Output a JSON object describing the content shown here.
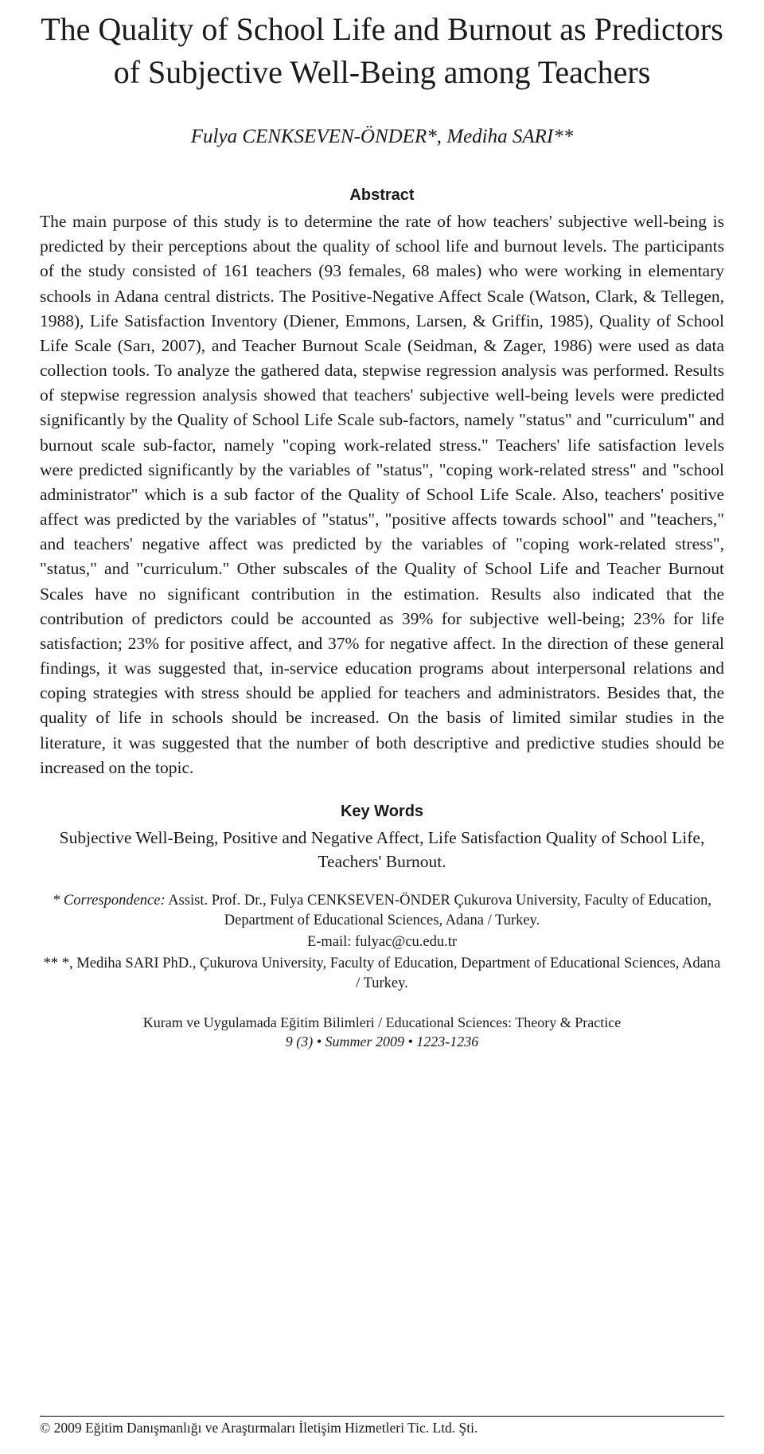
{
  "title": "The Quality of School Life and Burnout as Predictors of Subjective Well-Being among Teachers",
  "authors": "Fulya CENKSEVEN-ÖNDER*, Mediha SARI**",
  "abstract_heading": "Abstract",
  "abstract_body": "The main purpose of this study is to determine the rate of how teachers' subjective well-being is predicted by their perceptions about the quality of school life and burnout levels. The participants of the study consisted of 161 teachers (93 females, 68 males) who were working in elementary schools in Adana central districts. The Positive-Negative Affect Scale (Watson, Clark, & Tellegen, 1988), Life Satisfaction Inventory (Diener, Emmons, Larsen, & Griffin, 1985), Quality of School Life Scale (Sarı, 2007), and Teacher Burnout Scale (Seidman, & Zager, 1986) were used as data collection tools. To analyze the gathered data, stepwise regression analysis was performed.\nResults of stepwise regression analysis showed that teachers' subjective well-being levels were predicted significantly by the Quality of School Life Scale sub-factors, namely \"status\" and \"curriculum\" and burnout scale sub-factor, namely \"coping work-related stress.\" Teachers' life satisfaction levels were predicted significantly by the variables of \"status\", \"coping work-related stress\" and \"school administrator\" which is a sub factor of the Quality of School Life Scale. Also, teachers' positive affect was predicted by the variables of \"status\", \"positive affects towards school\" and \"teachers,\" and teachers' negative affect was predicted by the variables of \"coping work-related stress\", \"status,\" and \"curriculum.\" Other subscales of the Quality of School Life and Teacher Burnout Scales have no significant contribution in the estimation. Results also indicated that the contribution of predictors could be accounted as 39% for subjective well-being; 23% for life satisfaction; 23% for positive affect, and 37% for negative affect. In the direction of these general findings, it was suggested that, in-service education programs about interpersonal relations and coping strategies with stress should be applied for teachers and administrators. Besides that, the quality of life in schools should be increased. On the basis of limited similar studies in the literature, it was suggested that the number of both descriptive and predictive studies should be increased on the topic.",
  "keywords_heading": "Key Words",
  "keywords_body": "Subjective Well-Being, Positive and Negative Affect, Life Satisfaction Quality of School Life, Teachers' Burnout.",
  "correspondence1_label": "* Correspondence:",
  "correspondence1_body": " Assist. Prof. Dr., Fulya CENKSEVEN-ÖNDER Çukurova University, Faculty of Education, Department of Educational Sciences, Adana / Turkey.",
  "correspondence1_email": "E-mail: fulyac@cu.edu.tr",
  "correspondence2": "** *, Mediha SARI PhD., Çukurova University, Faculty of Education, Department of Educational Sciences, Adana / Turkey.",
  "journal_line1": "Kuram ve Uygulamada Eğitim Bilimleri / Educational Sciences: Theory & Practice",
  "journal_line2": "9 (3) • Summer 2009 • 1223-1236",
  "copyright": "© 2009 Eğitim Danışmanlığı ve Araştırmaları İletişim Hizmetleri Tic. Ltd. Şti."
}
